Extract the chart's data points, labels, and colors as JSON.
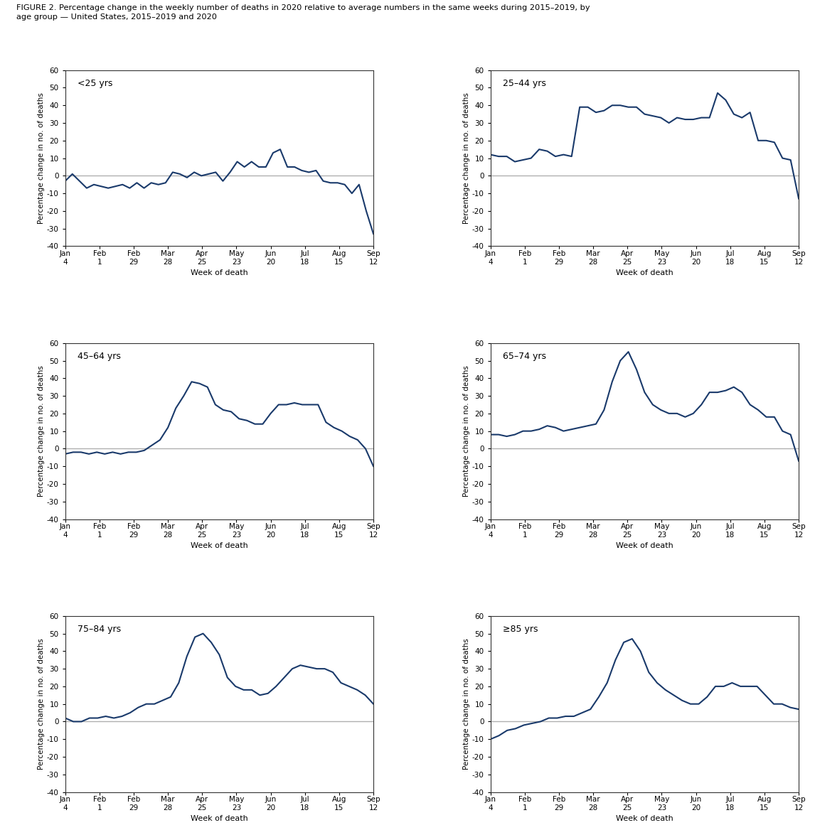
{
  "title": "FIGURE 2. Percentage change in the weekly number of deaths in 2020 relative to average numbers in the same weeks during 2015–2019, by\nage group — United States, 2015–2019 and 2020",
  "x_tick_labels": [
    "Jan\n4",
    "Feb\n1",
    "Feb\n29",
    "Mar\n28",
    "Apr\n25",
    "May\n23",
    "Jun\n20",
    "Jul\n18",
    "Aug\n15",
    "Sep\n12"
  ],
  "xlabel": "Week of death",
  "ylabel": "Percentage change in no. of deaths",
  "ylim": [
    -40,
    60
  ],
  "yticks": [
    -40,
    -30,
    -20,
    -10,
    0,
    10,
    20,
    30,
    40,
    50,
    60
  ],
  "line_color": "#1a3a6b",
  "zero_line_color": "#b0b0b0",
  "panels": [
    {
      "label": "<25 yrs",
      "data": [
        -3,
        1,
        -3,
        -7,
        -5,
        -6,
        -7,
        -6,
        -5,
        -7,
        -4,
        -7,
        -4,
        -5,
        -4,
        2,
        1,
        -1,
        2,
        0,
        1,
        2,
        -3,
        2,
        8,
        5,
        8,
        5,
        5,
        13,
        15,
        5,
        5,
        3,
        2,
        3,
        -3,
        -4,
        -4,
        -5,
        -10,
        -5,
        -20,
        -33
      ]
    },
    {
      "label": "25–44 yrs",
      "data": [
        12,
        11,
        11,
        8,
        9,
        10,
        15,
        14,
        11,
        12,
        11,
        39,
        39,
        36,
        37,
        40,
        40,
        39,
        39,
        35,
        34,
        33,
        30,
        33,
        32,
        32,
        33,
        33,
        47,
        43,
        35,
        33,
        36,
        20,
        20,
        19,
        10,
        9,
        -13
      ]
    },
    {
      "label": "45–64 yrs",
      "data": [
        -3,
        -2,
        -2,
        -3,
        -2,
        -3,
        -2,
        -3,
        -2,
        -2,
        -1,
        2,
        5,
        12,
        23,
        30,
        38,
        37,
        35,
        25,
        22,
        21,
        17,
        16,
        14,
        14,
        20,
        25,
        25,
        26,
        25,
        25,
        25,
        15,
        12,
        10,
        7,
        5,
        0,
        -10
      ]
    },
    {
      "label": "65–74 yrs",
      "data": [
        8,
        8,
        7,
        8,
        10,
        10,
        11,
        13,
        12,
        10,
        11,
        12,
        13,
        14,
        22,
        38,
        50,
        55,
        45,
        32,
        25,
        22,
        20,
        20,
        18,
        20,
        25,
        32,
        32,
        33,
        35,
        32,
        25,
        22,
        18,
        18,
        10,
        8,
        -7
      ]
    },
    {
      "label": "75–84 yrs",
      "data": [
        2,
        0,
        0,
        2,
        2,
        3,
        2,
        3,
        5,
        8,
        10,
        10,
        12,
        14,
        22,
        37,
        48,
        50,
        45,
        38,
        25,
        20,
        18,
        18,
        15,
        16,
        20,
        25,
        30,
        32,
        31,
        30,
        30,
        28,
        22,
        20,
        18,
        15,
        10
      ]
    },
    {
      "label": "≥85 yrs",
      "data": [
        -10,
        -8,
        -5,
        -4,
        -2,
        -1,
        0,
        2,
        2,
        3,
        3,
        5,
        7,
        14,
        22,
        35,
        45,
        47,
        40,
        28,
        22,
        18,
        15,
        12,
        10,
        10,
        14,
        20,
        20,
        22,
        20,
        20,
        20,
        15,
        10,
        10,
        8,
        7
      ]
    }
  ]
}
